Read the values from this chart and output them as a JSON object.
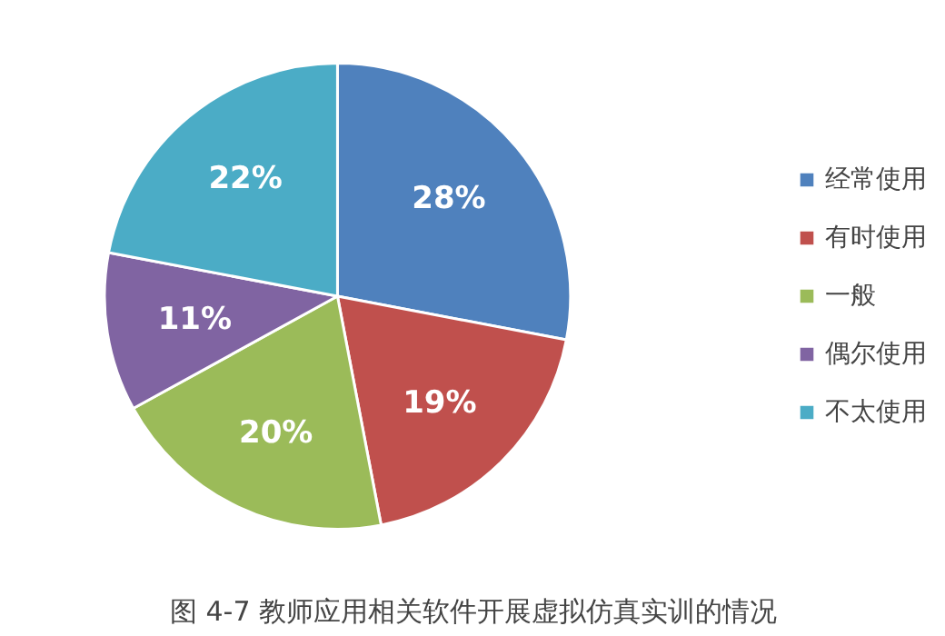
{
  "chart_data": {
    "type": "pie",
    "title": "图 4-7 教师应用相关软件开展虚拟仿真实训的情况",
    "categories": [
      "经常使用",
      "有时使用",
      "一般",
      "偶尔使用",
      "不太使用"
    ],
    "values": [
      28,
      19,
      20,
      11,
      22
    ],
    "colors": [
      "#4f81bd",
      "#c0504d",
      "#9bbb59",
      "#8064a2",
      "#4bacc6"
    ],
    "value_labels": [
      "28%",
      "19%",
      "20%",
      "11%",
      "22%"
    ],
    "legend": "right"
  }
}
